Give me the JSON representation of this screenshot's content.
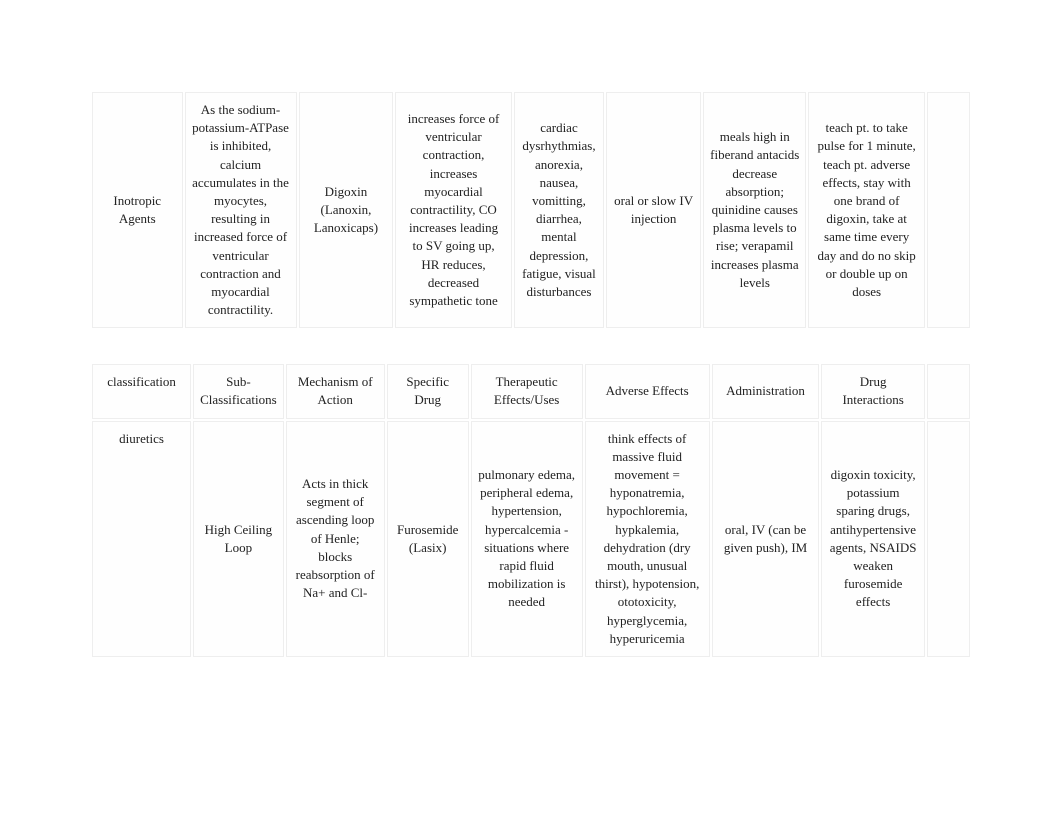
{
  "table1": {
    "rows": [
      {
        "c0": "Inotropic Agents",
        "c1": "As the sodium-potassium-ATPase is inhibited, calcium accumulates in the myocytes, resulting in increased force of ventricular contraction and myocardial contractility.",
        "c2": "Digoxin (Lanoxin, Lanoxicaps)",
        "c3": "increases force of ventricular contraction, increases myocardial contractility, CO increases leading to SV going up, HR reduces, decreased sympathetic tone",
        "c4": "cardiac dysrhythmias, anorexia, nausea, vomitting, diarrhea, mental depression, fatigue, visual disturbances",
        "c5": "oral or slow IV injection",
        "c6": "meals high in fiberand antacids decrease absorption; quinidine causes plasma levels to rise; verapamil increases plasma levels",
        "c7": "teach pt. to take pulse for 1 minute, teach pt. adverse effects, stay with one brand of digoxin, take at same time every day and do no skip or double up on doses",
        "c8": ""
      }
    ]
  },
  "table2": {
    "header": {
      "h0": "classification",
      "h1": "Sub-Classifications",
      "h2": "Mechanism of Action",
      "h3": "Specific Drug",
      "h4": "Therapeutic Effects/Uses",
      "h5": "Adverse Effects",
      "h6": "Administration",
      "h7": "Drug Interactions",
      "h8": ""
    },
    "rows": [
      {
        "c0": "diuretics",
        "c1": "High Ceiling Loop",
        "c2": "Acts in thick segment of ascending loop of Henle; blocks reabsorption of Na+ and Cl-",
        "c3": "Furosemide (Lasix)",
        "c4": "pulmonary edema, peripheral edema, hypertension, hypercalcemia - situations where rapid fluid mobilization is needed",
        "c5": "think effects of massive fluid movement = hyponatremia, hypochloremia, hypkalemia, dehydration (dry mouth, unusual thirst), hypotension, ototoxicity, hyperglycemia, hyperuricemia",
        "c6": "oral, IV (can be given push), IM",
        "c7": "digoxin toxicity, potassium sparing drugs, antihypertensive agents, NSAIDS weaken furosemide effects",
        "c8": ""
      }
    ]
  }
}
